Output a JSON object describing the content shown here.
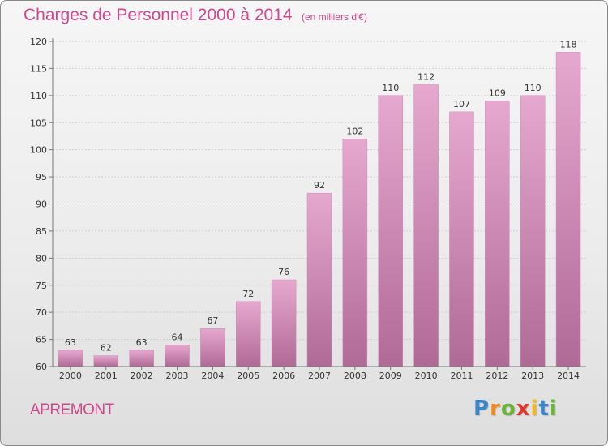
{
  "title": "Charges de Personnel 2000 à 2014",
  "subtitle": "(en milliers d'€)",
  "place": "APREMONT",
  "logo": {
    "text": "Proxiti",
    "letters": [
      {
        "ch": "P",
        "color": "#3a86c8"
      },
      {
        "ch": "r",
        "color": "#f08a1c"
      },
      {
        "ch": "o",
        "color": "#6bb33a"
      },
      {
        "ch": "x",
        "color": "#e0342f"
      },
      {
        "ch": "i",
        "color": "#f0b81c"
      },
      {
        "ch": "t",
        "color": "#3a86c8"
      },
      {
        "ch": "i",
        "color": "#6bb33a"
      }
    ]
  },
  "colors": {
    "accent": "#d2468c",
    "bar_top": "#e6a8cf",
    "bar_bottom": "#b06a96",
    "bar_stroke": "#c98bb3"
  },
  "chart_data": {
    "type": "bar",
    "categories": [
      "2000",
      "2001",
      "2002",
      "2003",
      "2004",
      "2005",
      "2006",
      "2007",
      "2008",
      "2009",
      "2010",
      "2011",
      "2012",
      "2013",
      "2014"
    ],
    "values": [
      63,
      62,
      63,
      64,
      67,
      72,
      76,
      92,
      102,
      110,
      112,
      107,
      109,
      110,
      118
    ],
    "ylim": [
      60,
      120
    ],
    "yticks": [
      60,
      65,
      70,
      75,
      80,
      85,
      90,
      95,
      100,
      105,
      110,
      115,
      120
    ],
    "grid": true
  }
}
